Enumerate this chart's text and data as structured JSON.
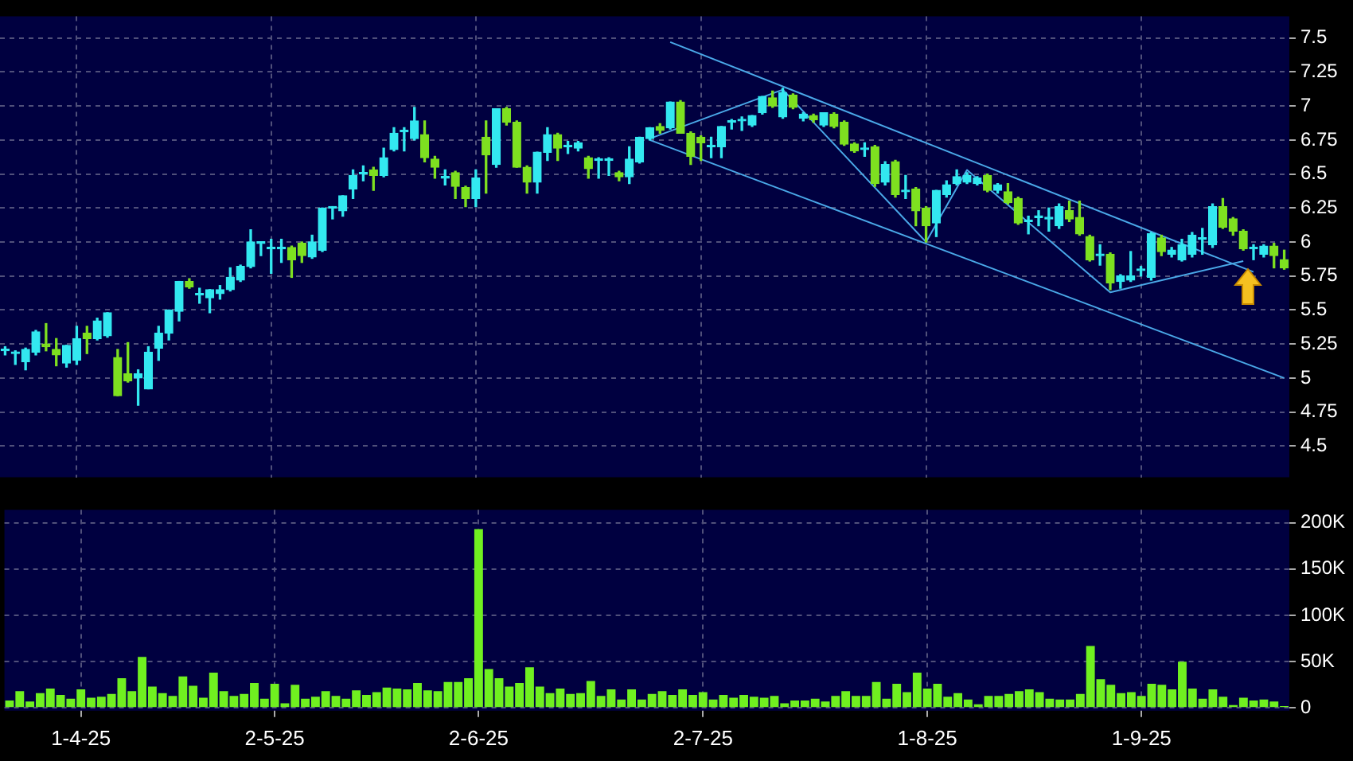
{
  "chart_data": [
    {
      "type": "candlestick",
      "ohlc": [
        [
          5.2,
          5.23,
          5.17,
          5.2
        ],
        [
          5.18,
          5.2,
          5.1,
          5.18
        ],
        [
          5.12,
          5.22,
          5.06,
          5.21
        ],
        [
          5.19,
          5.35,
          5.17,
          5.34
        ],
        [
          5.25,
          5.4,
          5.2,
          5.23
        ],
        [
          5.21,
          5.29,
          5.09,
          5.17
        ],
        [
          5.11,
          5.24,
          5.08,
          5.24
        ],
        [
          5.13,
          5.38,
          5.1,
          5.29
        ],
        [
          5.33,
          5.38,
          5.18,
          5.29
        ],
        [
          5.29,
          5.44,
          5.28,
          5.42
        ],
        [
          5.31,
          5.48,
          5.3,
          5.48
        ],
        [
          5.15,
          5.21,
          4.87,
          4.87
        ],
        [
          5.03,
          5.26,
          4.97,
          4.98
        ],
        [
          5.0,
          5.06,
          4.8,
          5.03
        ],
        [
          4.92,
          5.23,
          4.92,
          5.19
        ],
        [
          5.22,
          5.38,
          5.13,
          5.33
        ],
        [
          5.33,
          5.5,
          5.28,
          5.5
        ],
        [
          5.49,
          5.71,
          5.42,
          5.71
        ],
        [
          5.71,
          5.73,
          5.66,
          5.67
        ],
        [
          5.61,
          5.66,
          5.55,
          5.61
        ],
        [
          5.59,
          5.65,
          5.48,
          5.65
        ],
        [
          5.62,
          5.68,
          5.58,
          5.65
        ],
        [
          5.65,
          5.81,
          5.64,
          5.74
        ],
        [
          5.72,
          5.83,
          5.71,
          5.82
        ],
        [
          5.82,
          6.09,
          5.81,
          6.0
        ],
        [
          5.99,
          6.0,
          5.9,
          5.99
        ],
        [
          5.95,
          6.02,
          5.77,
          5.95
        ],
        [
          5.95,
          6.02,
          5.85,
          5.95
        ],
        [
          5.96,
          5.97,
          5.74,
          5.87
        ],
        [
          5.99,
          6.0,
          5.85,
          5.9
        ],
        [
          5.89,
          6.05,
          5.88,
          6.0
        ],
        [
          5.94,
          6.25,
          5.93,
          6.25
        ],
        [
          6.25,
          6.26,
          6.17,
          6.25
        ],
        [
          6.23,
          6.34,
          6.19,
          6.34
        ],
        [
          6.39,
          6.53,
          6.32,
          6.49
        ],
        [
          6.5,
          6.56,
          6.45,
          6.5
        ],
        [
          6.53,
          6.55,
          6.38,
          6.49
        ],
        [
          6.49,
          6.69,
          6.48,
          6.62
        ],
        [
          6.68,
          6.84,
          6.67,
          6.8
        ],
        [
          6.81,
          6.84,
          6.67,
          6.81
        ],
        [
          6.76,
          6.99,
          6.75,
          6.89
        ],
        [
          6.79,
          6.89,
          6.59,
          6.62
        ],
        [
          6.61,
          6.63,
          6.47,
          6.55
        ],
        [
          6.47,
          6.53,
          6.42,
          6.47
        ],
        [
          6.51,
          6.52,
          6.32,
          6.41
        ],
        [
          6.4,
          6.41,
          6.26,
          6.32
        ],
        [
          6.32,
          6.53,
          6.26,
          6.47
        ],
        [
          6.77,
          6.89,
          6.36,
          6.64
        ],
        [
          6.57,
          6.98,
          6.55,
          6.98
        ],
        [
          6.98,
          6.99,
          6.86,
          6.88
        ],
        [
          6.88,
          6.89,
          6.55,
          6.55
        ],
        [
          6.55,
          6.56,
          6.36,
          6.44
        ],
        [
          6.44,
          6.66,
          6.36,
          6.66
        ],
        [
          6.66,
          6.84,
          6.6,
          6.79
        ],
        [
          6.79,
          6.8,
          6.6,
          6.69
        ],
        [
          6.7,
          6.74,
          6.65,
          6.7
        ],
        [
          6.69,
          6.74,
          6.67,
          6.73
        ],
        [
          6.62,
          6.63,
          6.47,
          6.54
        ],
        [
          6.6,
          6.62,
          6.47,
          6.6
        ],
        [
          6.6,
          6.62,
          6.49,
          6.6
        ],
        [
          6.51,
          6.52,
          6.45,
          6.48
        ],
        [
          6.48,
          6.7,
          6.43,
          6.61
        ],
        [
          6.59,
          6.77,
          6.58,
          6.77
        ],
        [
          6.76,
          6.84,
          6.75,
          6.84
        ],
        [
          6.85,
          6.87,
          6.8,
          6.82
        ],
        [
          6.84,
          7.03,
          6.83,
          7.03
        ],
        [
          7.03,
          7.04,
          6.8,
          6.8
        ],
        [
          6.8,
          6.81,
          6.57,
          6.63
        ],
        [
          6.77,
          6.78,
          6.6,
          6.73
        ],
        [
          6.7,
          6.77,
          6.62,
          6.7
        ],
        [
          6.7,
          6.85,
          6.62,
          6.85
        ],
        [
          6.88,
          6.9,
          6.83,
          6.88
        ],
        [
          6.89,
          6.92,
          6.82,
          6.89
        ],
        [
          6.86,
          6.93,
          6.85,
          6.93
        ],
        [
          6.95,
          7.07,
          6.94,
          7.07
        ],
        [
          7.06,
          7.11,
          6.99,
          7.0
        ],
        [
          6.92,
          7.13,
          6.91,
          7.1
        ],
        [
          7.08,
          7.09,
          6.98,
          6.99
        ],
        [
          6.91,
          6.95,
          6.89,
          6.94
        ],
        [
          6.93,
          6.94,
          6.88,
          6.9
        ],
        [
          6.86,
          6.95,
          6.85,
          6.95
        ],
        [
          6.94,
          6.95,
          6.84,
          6.85
        ],
        [
          6.88,
          6.89,
          6.71,
          6.72
        ],
        [
          6.72,
          6.73,
          6.66,
          6.67
        ],
        [
          6.68,
          6.73,
          6.63,
          6.68
        ],
        [
          6.7,
          6.71,
          6.41,
          6.43
        ],
        [
          6.44,
          6.59,
          6.42,
          6.57
        ],
        [
          6.59,
          6.6,
          6.33,
          6.35
        ],
        [
          6.37,
          6.49,
          6.32,
          6.37
        ],
        [
          6.39,
          6.4,
          6.12,
          6.23
        ],
        [
          6.25,
          6.26,
          6.0,
          6.12
        ],
        [
          6.14,
          6.38,
          6.04,
          6.38
        ],
        [
          6.35,
          6.45,
          6.33,
          6.42
        ],
        [
          6.43,
          6.53,
          6.42,
          6.48
        ],
        [
          6.44,
          6.51,
          6.43,
          6.49
        ],
        [
          6.43,
          6.48,
          6.42,
          6.47
        ],
        [
          6.49,
          6.5,
          6.37,
          6.38
        ],
        [
          6.38,
          6.43,
          6.36,
          6.42
        ],
        [
          6.37,
          6.43,
          6.28,
          6.29
        ],
        [
          6.32,
          6.33,
          6.13,
          6.14
        ],
        [
          6.15,
          6.19,
          6.06,
          6.15
        ],
        [
          6.18,
          6.23,
          6.12,
          6.18
        ],
        [
          6.17,
          6.25,
          6.08,
          6.17
        ],
        [
          6.12,
          6.28,
          6.1,
          6.26
        ],
        [
          6.23,
          6.3,
          6.15,
          6.17
        ],
        [
          6.18,
          6.3,
          6.05,
          6.06
        ],
        [
          6.04,
          6.05,
          5.86,
          5.87
        ],
        [
          5.9,
          5.98,
          5.83,
          5.9
        ],
        [
          5.91,
          5.92,
          5.65,
          5.7
        ],
        [
          5.71,
          5.76,
          5.66,
          5.75
        ],
        [
          5.72,
          5.93,
          5.71,
          5.75
        ],
        [
          5.79,
          5.82,
          5.75,
          5.79
        ],
        [
          5.74,
          6.07,
          5.72,
          6.06
        ],
        [
          6.03,
          6.05,
          5.9,
          5.93
        ],
        [
          5.91,
          5.96,
          5.89,
          5.94
        ],
        [
          5.87,
          6.02,
          5.86,
          5.98
        ],
        [
          5.91,
          6.07,
          5.89,
          6.05
        ],
        [
          6.02,
          6.1,
          5.91,
          6.02
        ],
        [
          5.98,
          6.28,
          5.96,
          6.26
        ],
        [
          6.26,
          6.32,
          6.1,
          6.11
        ],
        [
          6.17,
          6.18,
          6.05,
          6.08
        ],
        [
          6.08,
          6.09,
          5.94,
          5.95
        ],
        [
          5.95,
          5.98,
          5.87,
          5.95
        ],
        [
          5.91,
          5.98,
          5.89,
          5.97
        ],
        [
          5.97,
          5.99,
          5.81,
          5.9
        ],
        [
          5.87,
          5.94,
          5.8,
          5.81
        ]
      ],
      "colors": [
        "#33e8f0",
        "#33e8f0",
        "#33e8f0",
        "#33e8f0",
        "#7ee020",
        "#7ee020",
        "#33e8f0",
        "#33e8f0",
        "#7ee020",
        "#33e8f0",
        "#33e8f0",
        "#7ee020",
        "#7ee020",
        "#33e8f0",
        "#33e8f0",
        "#33e8f0",
        "#33e8f0",
        "#33e8f0",
        "#7ee020",
        "#33e8f0",
        "#33e8f0",
        "#33e8f0",
        "#33e8f0",
        "#33e8f0",
        "#33e8f0",
        "#33e8f0",
        "#33e8f0",
        "#33e8f0",
        "#7ee020",
        "#7ee020",
        "#33e8f0",
        "#33e8f0",
        "#33e8f0",
        "#33e8f0",
        "#33e8f0",
        "#33e8f0",
        "#7ee020",
        "#33e8f0",
        "#33e8f0",
        "#33e8f0",
        "#33e8f0",
        "#7ee020",
        "#7ee020",
        "#33e8f0",
        "#7ee020",
        "#7ee020",
        "#33e8f0",
        "#7ee020",
        "#33e8f0",
        "#7ee020",
        "#7ee020",
        "#7ee020",
        "#33e8f0",
        "#33e8f0",
        "#7ee020",
        "#33e8f0",
        "#33e8f0",
        "#7ee020",
        "#33e8f0",
        "#33e8f0",
        "#7ee020",
        "#33e8f0",
        "#33e8f0",
        "#33e8f0",
        "#7ee020",
        "#33e8f0",
        "#7ee020",
        "#7ee020",
        "#7ee020",
        "#33e8f0",
        "#33e8f0",
        "#33e8f0",
        "#33e8f0",
        "#33e8f0",
        "#33e8f0",
        "#7ee020",
        "#33e8f0",
        "#7ee020",
        "#33e8f0",
        "#7ee020",
        "#33e8f0",
        "#7ee020",
        "#7ee020",
        "#7ee020",
        "#33e8f0",
        "#7ee020",
        "#33e8f0",
        "#7ee020",
        "#33e8f0",
        "#7ee020",
        "#7ee020",
        "#33e8f0",
        "#33e8f0",
        "#33e8f0",
        "#33e8f0",
        "#33e8f0",
        "#7ee020",
        "#33e8f0",
        "#7ee020",
        "#7ee020",
        "#33e8f0",
        "#33e8f0",
        "#33e8f0",
        "#33e8f0",
        "#7ee020",
        "#7ee020",
        "#7ee020",
        "#33e8f0",
        "#7ee020",
        "#33e8f0",
        "#33e8f0",
        "#33e8f0",
        "#33e8f0",
        "#7ee020",
        "#33e8f0",
        "#33e8f0",
        "#33e8f0",
        "#33e8f0",
        "#33e8f0",
        "#7ee020",
        "#7ee020",
        "#7ee020",
        "#33e8f0",
        "#33e8f0",
        "#7ee020",
        "#7ee020"
      ],
      "series": [
        {
          "type": "line",
          "color": "#4aa8e8",
          "values": [
            null,
            null,
            null,
            null,
            null,
            null,
            null,
            null,
            null,
            null,
            null,
            null,
            null,
            null,
            null,
            null,
            null,
            null,
            null,
            null,
            null,
            null,
            null,
            null,
            null,
            null,
            null,
            null,
            null,
            null,
            null,
            null,
            null,
            null,
            null,
            null,
            null,
            null,
            null,
            null,
            null,
            null,
            null,
            null,
            null,
            null,
            null,
            null,
            null,
            null,
            null,
            null,
            null,
            null,
            null,
            null,
            null,
            null,
            null,
            null,
            null,
            null,
            null,
            null,
            null,
            7.47,
            null,
            null,
            null,
            null,
            null,
            null,
            null,
            null,
            null,
            null,
            null,
            null,
            null,
            null,
            null,
            null,
            null,
            null,
            null,
            null,
            null,
            null,
            null,
            null,
            null,
            null,
            null,
            null,
            null,
            null,
            null,
            null,
            null,
            null,
            null,
            null,
            null,
            null,
            null,
            null,
            null,
            null,
            null,
            null,
            null,
            null,
            null,
            null,
            null,
            null,
            null,
            null,
            null,
            null,
            null,
            null,
            5.78,
            null,
            null,
            null
          ]
        },
        {
          "type": "line",
          "color": "#4aa8e8",
          "values": [
            null,
            null,
            null,
            null,
            null,
            null,
            null,
            null,
            null,
            null,
            null,
            null,
            null,
            null,
            null,
            null,
            null,
            null,
            null,
            null,
            null,
            null,
            null,
            null,
            null,
            null,
            null,
            null,
            null,
            null,
            null,
            null,
            null,
            null,
            null,
            null,
            null,
            null,
            null,
            null,
            null,
            null,
            null,
            null,
            null,
            null,
            null,
            null,
            null,
            null,
            null,
            null,
            null,
            null,
            null,
            null,
            null,
            null,
            null,
            null,
            null,
            null,
            null,
            6.75,
            null,
            null,
            null,
            null,
            null,
            null,
            null,
            null,
            null,
            null,
            null,
            null,
            null,
            null,
            null,
            null,
            null,
            null,
            null,
            null,
            null,
            null,
            null,
            null,
            null,
            null,
            null,
            null,
            null,
            null,
            null,
            null,
            null,
            null,
            null,
            null,
            null,
            null,
            null,
            null,
            null,
            null,
            null,
            null,
            null,
            null,
            null,
            null,
            null,
            null,
            null,
            null,
            null,
            null,
            null,
            null,
            null,
            null,
            null,
            null,
            null,
            5.0
          ]
        },
        {
          "type": "line",
          "color": "#4aa8e8",
          "values": [
            null,
            null,
            null,
            null,
            null,
            null,
            null,
            null,
            null,
            null,
            null,
            null,
            null,
            null,
            null,
            null,
            null,
            null,
            null,
            null,
            null,
            null,
            null,
            null,
            null,
            null,
            null,
            null,
            null,
            null,
            null,
            null,
            null,
            null,
            null,
            null,
            null,
            null,
            null,
            null,
            null,
            null,
            null,
            null,
            null,
            null,
            null,
            null,
            null,
            null,
            null,
            null,
            null,
            null,
            null,
            null,
            null,
            null,
            null,
            null,
            null,
            null,
            null,
            6.76,
            null,
            null,
            null,
            null,
            null,
            null,
            null,
            null,
            null,
            null,
            null,
            null,
            7.12,
            null,
            null,
            null,
            null,
            null,
            null,
            null,
            null,
            null,
            null,
            null,
            null,
            null,
            6.0,
            null,
            null,
            null,
            6.53,
            null,
            null,
            null,
            null,
            null,
            null,
            null,
            null,
            null,
            null,
            null,
            null,
            null,
            5.63,
            null,
            null,
            null,
            null,
            null,
            null,
            null,
            null,
            null,
            null,
            null,
            null,
            5.86,
            null,
            null,
            null,
            null
          ]
        }
      ],
      "ylim": [
        4.27,
        7.66
      ],
      "yticks": [
        4.5,
        4.75,
        5,
        5.25,
        5.5,
        5.75,
        6,
        6.25,
        6.5,
        6.75,
        7,
        7.25,
        7.5
      ],
      "grid": true,
      "tick_labels": "y"
    },
    {
      "type": "bar",
      "categories": [
        null,
        null,
        null,
        null,
        null,
        null,
        null,
        "1-4-25",
        null,
        null,
        null,
        null,
        null,
        null,
        null,
        null,
        null,
        null,
        null,
        null,
        null,
        null,
        null,
        null,
        null,
        null,
        "2-5-25",
        null,
        null,
        null,
        null,
        null,
        null,
        null,
        null,
        null,
        null,
        null,
        null,
        null,
        null,
        null,
        null,
        null,
        null,
        null,
        "2-6-25",
        null,
        null,
        null,
        null,
        null,
        null,
        null,
        null,
        null,
        null,
        null,
        null,
        null,
        null,
        null,
        null,
        null,
        null,
        null,
        null,
        null,
        "2-7-25",
        null,
        null,
        null,
        null,
        null,
        null,
        null,
        null,
        null,
        null,
        null,
        null,
        null,
        null,
        null,
        null,
        null,
        null,
        null,
        null,
        null,
        "1-8-25",
        null,
        null,
        null,
        null,
        null,
        null,
        null,
        null,
        null,
        null,
        null,
        null,
        null,
        null,
        null,
        null,
        null,
        null,
        null,
        null,
        "1-9-25",
        null,
        null,
        null,
        null,
        null,
        null,
        null,
        null,
        null,
        null,
        null,
        null,
        null,
        null
      ],
      "values": [
        8,
        18,
        7,
        16,
        21,
        14,
        10,
        20,
        11,
        12,
        15,
        32,
        18,
        55,
        23,
        16,
        13,
        34,
        24,
        11,
        38,
        18,
        13,
        15,
        27,
        10,
        26,
        5,
        25,
        10,
        12,
        18,
        13,
        10,
        19,
        14,
        17,
        22,
        21,
        20,
        27,
        19,
        18,
        28,
        28,
        32,
        193,
        42,
        32,
        23,
        27,
        44,
        23,
        16,
        21,
        15,
        16,
        29,
        13,
        20,
        9,
        20,
        9,
        15,
        18,
        14,
        20,
        14,
        17,
        9,
        14,
        11,
        14,
        12,
        11,
        13,
        5,
        8,
        8,
        10,
        7,
        13,
        18,
        13,
        13,
        28,
        10,
        26,
        17,
        38,
        21,
        26,
        12,
        16,
        9,
        4,
        13,
        13,
        15,
        18,
        20,
        17,
        10,
        9,
        9,
        15,
        67,
        31,
        25,
        16,
        17,
        13,
        26,
        25,
        20,
        50,
        21,
        10,
        20,
        12,
        3,
        11,
        8,
        9,
        7,
        2
      ],
      "color": "#70f020",
      "ylim": [
        -3,
        214
      ],
      "yticks": [
        0,
        {
          "value": 50,
          "label": "50K"
        },
        {
          "value": 100,
          "label": "100K"
        },
        {
          "value": 150,
          "label": "150K"
        },
        {
          "value": 200,
          "label": "200K"
        }
      ],
      "grid": true
    }
  ]
}
